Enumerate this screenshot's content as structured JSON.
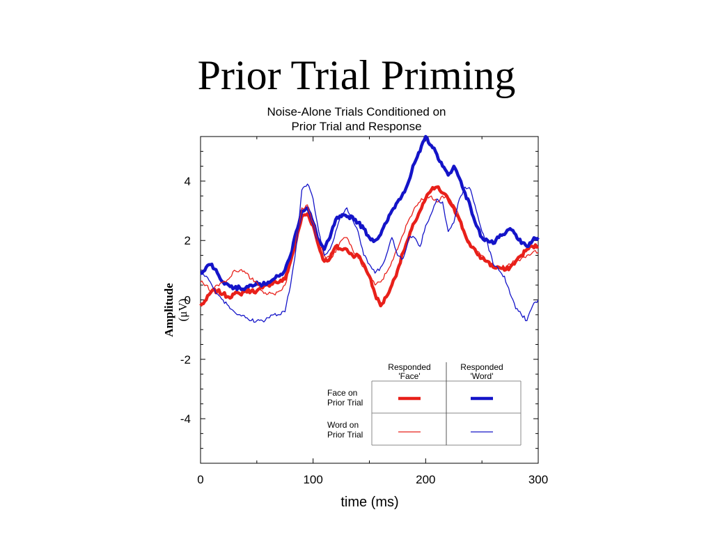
{
  "slide": {
    "title": "Prior Trial Priming"
  },
  "chart_data": {
    "type": "line",
    "title_lines": [
      "Noise-Alone Trials Conditioned on",
      "Prior Trial and Response"
    ],
    "xlabel": "time (ms)",
    "ylabel_lines": [
      "Amplitude",
      "(μV)"
    ],
    "xlim": [
      0,
      300
    ],
    "ylim": [
      -5.5,
      5.5
    ],
    "xticks": [
      0,
      100,
      200,
      300
    ],
    "yticks": [
      -4,
      -2,
      0,
      2,
      4
    ],
    "grid": false,
    "legend": {
      "placement": "bottom-right",
      "col_headers": [
        [
          "Responded",
          "'Face'"
        ],
        [
          "Responded",
          "'Word'"
        ]
      ],
      "row_headers": [
        [
          "Face on",
          "Prior Trial"
        ],
        [
          "Word on",
          "Prior Trial"
        ]
      ]
    },
    "series": [
      {
        "color": "#e8201a",
        "width": 4.5,
        "legend_row": 0,
        "legend_col": 0,
        "x": [
          0,
          5,
          10,
          15,
          20,
          25,
          30,
          35,
          40,
          45,
          50,
          55,
          60,
          65,
          70,
          75,
          80,
          85,
          90,
          95,
          100,
          105,
          110,
          115,
          120,
          125,
          130,
          135,
          140,
          145,
          150,
          155,
          160,
          165,
          170,
          175,
          180,
          185,
          190,
          195,
          200,
          205,
          210,
          215,
          220,
          225,
          230,
          235,
          240,
          245,
          250,
          255,
          260,
          265,
          270,
          275,
          280,
          285,
          290,
          295,
          300
        ],
        "y": [
          -0.2,
          0.0,
          0.3,
          0.3,
          0.2,
          0.1,
          0.2,
          0.2,
          0.3,
          0.3,
          0.3,
          0.4,
          0.5,
          0.6,
          0.6,
          0.7,
          1.3,
          2.0,
          2.8,
          2.9,
          2.5,
          1.8,
          1.3,
          1.4,
          1.8,
          1.7,
          1.7,
          1.5,
          1.5,
          1.2,
          0.8,
          0.2,
          -0.2,
          0.1,
          0.5,
          1.0,
          1.6,
          2.1,
          2.6,
          3.0,
          3.4,
          3.7,
          3.8,
          3.6,
          3.4,
          3.1,
          2.7,
          2.2,
          1.8,
          1.6,
          1.4,
          1.3,
          1.1,
          1.1,
          1.0,
          1.1,
          1.3,
          1.5,
          1.7,
          1.8,
          1.8
        ]
      },
      {
        "color": "#1414c8",
        "width": 4.5,
        "legend_row": 0,
        "legend_col": 1,
        "x": [
          0,
          5,
          10,
          15,
          20,
          25,
          30,
          35,
          40,
          45,
          50,
          55,
          60,
          65,
          70,
          75,
          80,
          85,
          90,
          95,
          100,
          105,
          110,
          115,
          120,
          125,
          130,
          135,
          140,
          145,
          150,
          155,
          160,
          165,
          170,
          175,
          180,
          185,
          190,
          195,
          200,
          205,
          210,
          215,
          220,
          225,
          230,
          235,
          240,
          245,
          250,
          255,
          260,
          265,
          270,
          275,
          280,
          285,
          290,
          295,
          300
        ],
        "y": [
          0.9,
          1.1,
          1.2,
          0.9,
          0.6,
          0.5,
          0.4,
          0.4,
          0.4,
          0.5,
          0.6,
          0.5,
          0.6,
          0.7,
          0.8,
          1.0,
          1.5,
          2.3,
          3.0,
          3.1,
          2.6,
          2.0,
          1.7,
          2.1,
          2.7,
          2.8,
          2.8,
          2.8,
          2.6,
          2.4,
          2.1,
          2.0,
          2.2,
          2.6,
          3.0,
          3.3,
          3.6,
          4.0,
          4.6,
          5.0,
          5.5,
          5.2,
          4.9,
          4.5,
          4.2,
          4.5,
          4.1,
          3.6,
          3.1,
          2.5,
          2.1,
          2.0,
          1.9,
          2.1,
          2.2,
          2.4,
          2.2,
          1.9,
          1.8,
          2.0,
          2.1
        ]
      },
      {
        "color": "#e8201a",
        "width": 1.3,
        "legend_row": 1,
        "legend_col": 0,
        "x": [
          0,
          5,
          10,
          15,
          20,
          25,
          30,
          35,
          40,
          45,
          50,
          55,
          60,
          65,
          70,
          75,
          80,
          85,
          90,
          95,
          100,
          105,
          110,
          115,
          120,
          125,
          130,
          135,
          140,
          145,
          150,
          155,
          160,
          165,
          170,
          175,
          180,
          185,
          190,
          195,
          200,
          205,
          210,
          215,
          220,
          225,
          230,
          235,
          240,
          245,
          250,
          255,
          260,
          265,
          270,
          275,
          280,
          285,
          290,
          295,
          300
        ],
        "y": [
          0.6,
          0.5,
          0.3,
          0.5,
          0.6,
          0.7,
          1.0,
          1.0,
          0.9,
          0.7,
          0.6,
          0.3,
          0.2,
          0.2,
          0.3,
          0.5,
          1.2,
          2.1,
          3.1,
          3.2,
          2.6,
          1.9,
          1.5,
          1.4,
          1.6,
          2.0,
          2.1,
          1.7,
          1.4,
          1.1,
          0.8,
          0.5,
          0.6,
          0.9,
          1.3,
          1.7,
          2.2,
          2.7,
          3.1,
          3.3,
          3.5,
          3.5,
          3.3,
          3.5,
          3.4,
          3.2,
          2.8,
          2.3,
          1.9,
          1.6,
          1.5,
          1.3,
          1.1,
          1.1,
          1.1,
          1.2,
          1.3,
          1.4,
          1.5,
          1.6,
          1.6
        ]
      },
      {
        "color": "#1414c8",
        "width": 1.3,
        "legend_row": 1,
        "legend_col": 1,
        "x": [
          0,
          5,
          10,
          15,
          20,
          25,
          30,
          35,
          40,
          45,
          50,
          55,
          60,
          65,
          70,
          75,
          80,
          85,
          90,
          95,
          100,
          105,
          110,
          115,
          120,
          125,
          130,
          135,
          140,
          145,
          150,
          155,
          160,
          165,
          170,
          175,
          180,
          185,
          190,
          195,
          200,
          205,
          210,
          215,
          220,
          225,
          230,
          235,
          240,
          245,
          250,
          255,
          260,
          265,
          270,
          275,
          280,
          285,
          290,
          295,
          300
        ],
        "y": [
          1.0,
          0.8,
          0.5,
          0.2,
          0.0,
          -0.2,
          -0.4,
          -0.5,
          -0.6,
          -0.7,
          -0.7,
          -0.7,
          -0.6,
          -0.5,
          -0.5,
          -0.4,
          0.5,
          1.8,
          3.7,
          3.9,
          3.4,
          2.3,
          1.5,
          1.7,
          2.3,
          2.9,
          3.1,
          2.7,
          2.3,
          1.5,
          1.2,
          0.9,
          1.1,
          1.5,
          2.1,
          1.5,
          1.4,
          2.1,
          2.1,
          1.8,
          2.5,
          2.9,
          3.4,
          3.3,
          2.3,
          2.6,
          3.4,
          3.8,
          3.7,
          3.0,
          2.3,
          1.9,
          1.2,
          1.0,
          0.8,
          0.2,
          -0.3,
          -0.5,
          -0.7,
          -0.2,
          0.0
        ]
      }
    ]
  }
}
